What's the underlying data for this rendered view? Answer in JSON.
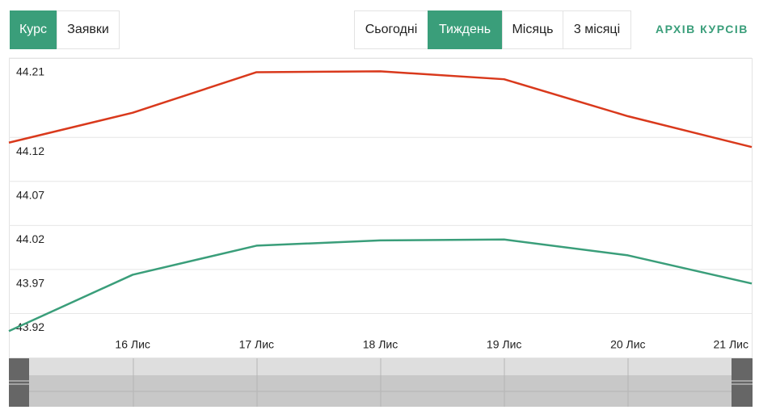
{
  "tabs_left": [
    "Курс",
    "Заявки"
  ],
  "tabs_right": [
    "Сьогодні",
    "Тиждень",
    "Місяць",
    "3 місяці"
  ],
  "archive_link": "АРХІВ КУРСІВ",
  "chart_data": {
    "type": "line",
    "categories": [
      null,
      "16 Лис",
      "17 Лис",
      "18 Лис",
      "19 Лис",
      "20 Лис",
      "21 Лис"
    ],
    "series": [
      {
        "color": "#d9391c",
        "values": [
          44.114,
          44.148,
          44.194,
          44.195,
          44.186,
          44.144,
          44.109
        ]
      },
      {
        "color": "#3a9e7a",
        "values": [
          43.9,
          43.964,
          43.997,
          44.003,
          44.004,
          43.986,
          43.954
        ]
      }
    ],
    "ylim": [
      43.87,
      44.21
    ],
    "yticks": [
      43.92,
      43.97,
      44.02,
      44.07,
      44.12,
      44.21
    ],
    "grid": true
  }
}
